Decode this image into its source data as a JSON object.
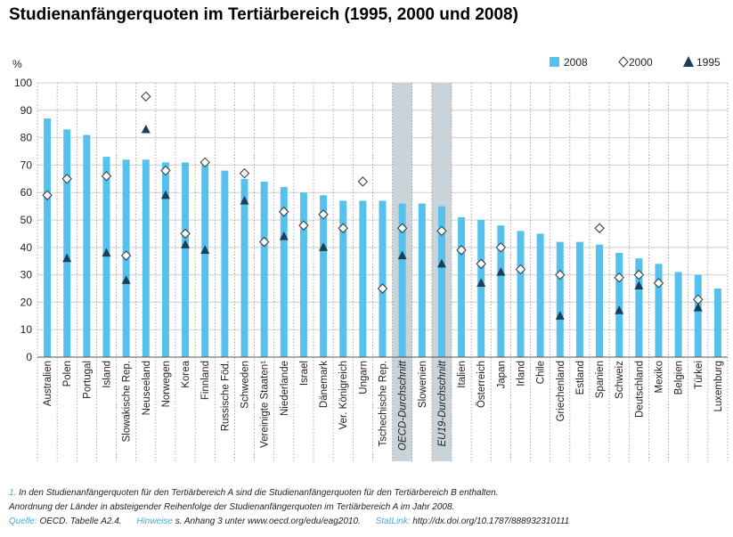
{
  "title": "Studienanfängerquoten im Tertiärbereich (1995, 2000 und 2008)",
  "colors": {
    "bar": "#56c1ec",
    "highlight": "#c9d3d9",
    "marker1995": "#1d3f55"
  },
  "chart_data": {
    "type": "bar",
    "title": "Studienanfängerquoten im Tertiärbereich (1995, 2000 und 2008)",
    "ylabel": "%",
    "ylim": [
      0,
      100
    ],
    "yticks": [
      0,
      10,
      20,
      30,
      40,
      50,
      60,
      70,
      80,
      90,
      100
    ],
    "legend": {
      "position": "top-right",
      "labels": [
        "2008",
        "2000",
        "1995"
      ]
    },
    "categories": [
      "Australien",
      "Polen",
      "Portugal",
      "Island",
      "Slowakische Rep.",
      "Neuseeland",
      "Norwegen",
      "Korea",
      "Finnland",
      "Russische Föd.",
      "Schweden",
      "Vereinigte Staaten¹",
      "Niederlande",
      "Israel",
      "Dänemark",
      "Ver. Königreich",
      "Ungarn",
      "Tschechische Rep.",
      "OECD-Durchschnitt",
      "Slowenien",
      "EU19-Durchschnitt",
      "Italien",
      "Österreich",
      "Japan",
      "Irland",
      "Chile",
      "Griechenland",
      "Estland",
      "Spanien",
      "Schweiz",
      "Deutschland",
      "Mexiko",
      "Belgien",
      "Türkei",
      "Luxemburg"
    ],
    "highlighted": [
      "OECD-Durchschnitt",
      "EU19-Durchschnitt"
    ],
    "series": [
      {
        "name": "2008",
        "type": "bar",
        "values": [
          87,
          83,
          81,
          73,
          72,
          72,
          71,
          71,
          70,
          68,
          65,
          64,
          62,
          60,
          59,
          57,
          57,
          57,
          56,
          56,
          55,
          51,
          50,
          48,
          46,
          45,
          42,
          42,
          41,
          38,
          36,
          34,
          31,
          30,
          25
        ]
      },
      {
        "name": "2000",
        "type": "diamond",
        "values": [
          59,
          65,
          null,
          66,
          37,
          95,
          68,
          45,
          71,
          null,
          67,
          42,
          53,
          48,
          52,
          47,
          64,
          25,
          47,
          null,
          46,
          39,
          34,
          40,
          32,
          null,
          30,
          null,
          47,
          29,
          30,
          27,
          null,
          21,
          null
        ]
      },
      {
        "name": "1995",
        "type": "triangle",
        "values": [
          null,
          36,
          null,
          38,
          28,
          83,
          59,
          41,
          39,
          null,
          57,
          null,
          44,
          null,
          40,
          null,
          null,
          null,
          37,
          null,
          34,
          null,
          27,
          31,
          null,
          null,
          15,
          null,
          null,
          17,
          26,
          null,
          null,
          18,
          null
        ]
      }
    ]
  },
  "notes": {
    "line1_num": "1.",
    "line1_text": "In den Studienanfängerquoten für den Tertiärbereich A sind die Studienanfängerquoten für den Tertiärbereich B enthalten.",
    "line2_text": "Anordnung der Länder in absteigender Reihenfolge der Studienanfängerquoten im Tertiärbereich A im Jahr 2008.",
    "source_label": "Quelle:",
    "source_text": "OECD. Tabelle A2.4.",
    "notes_label": "Hinweise",
    "notes_text": "s. Anhang 3 unter www.oecd.org/edu/eag2010.",
    "statlink_label": "StatLink:",
    "statlink_text": "http://dx.doi.org/10.1787/888932310111"
  }
}
